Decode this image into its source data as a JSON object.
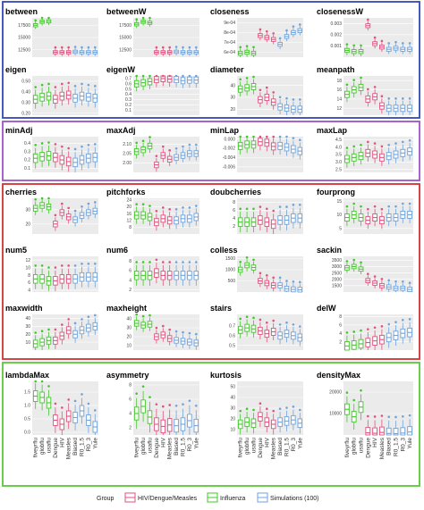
{
  "chart_data": {
    "type": "box",
    "categories": [
      "fiveyrflu",
      "globflu",
      "usaflu",
      "Dengue",
      "HIV",
      "Measles",
      "Biased",
      "R0_1.5",
      "R0_3",
      "Yule"
    ],
    "category_groups": [
      "Influenza",
      "Influenza",
      "Influenza",
      "HIV/Dengue/Measles",
      "HIV/Dengue/Measles",
      "HIV/Dengue/Measles",
      "Simulations (100)",
      "Simulations (100)",
      "Simulations (100)",
      "Simulations (100)"
    ],
    "legend": {
      "title": "Group",
      "entries": [
        "HIV/Dengue/Measles",
        "Influenza",
        "Simulations (100)"
      ],
      "position": "bottom"
    },
    "colors": {
      "HIV/Dengue/Measles": "#e0527f",
      "Influenza": "#40c828",
      "Simulations (100)": "#6fa3dc",
      "panel_bg": "#ebebeb",
      "grid": "#ffffff"
    },
    "groups": [
      {
        "frame_color": "#3346b8",
        "panels": [
          {
            "name": "between",
            "ylim": [
              11000,
              19000
            ],
            "yticks": [
              "12500",
              "15000",
              "17500"
            ],
            "medians": [
              17500,
              18200,
              18300,
              12000,
              12000,
              12000,
              12100,
              12000,
              12000,
              12000
            ],
            "spread": 0.04
          },
          {
            "name": "betweenW",
            "ylim": [
              11000,
              19000
            ],
            "yticks": [
              "12500",
              "15000",
              "17500"
            ],
            "medians": [
              17700,
              18200,
              18000,
              12000,
              12000,
              12000,
              12100,
              12000,
              12000,
              12000
            ],
            "spread": 0.04
          },
          {
            "name": "closeness",
            "ylim": [
              0.00055,
              0.00095
            ],
            "yticks": [
              "6e-04",
              "7e-04",
              "8e-04",
              "9e-04"
            ],
            "medians": [
              0.00059,
              0.0006,
              0.00059,
              0.00077,
              0.00075,
              0.00073,
              0.00068,
              0.00076,
              0.0008,
              0.00082
            ],
            "spread": 0.05
          },
          {
            "name": "closenessW",
            "ylim": [
              0,
              0.0035
            ],
            "yticks": [
              "0.001",
              "0.002",
              "0.003"
            ],
            "medians": [
              0.0006,
              0.0005,
              0.0005,
              0.0028,
              0.0012,
              0.0009,
              0.0007,
              0.0008,
              0.0007,
              0.0007
            ],
            "spread": 0.05
          },
          {
            "name": "eigen",
            "ylim": [
              0.18,
              0.55
            ],
            "yticks": [
              "0.20",
              "0.30",
              "0.40",
              "0.50"
            ],
            "medians": [
              0.33,
              0.35,
              0.36,
              0.33,
              0.36,
              0.37,
              0.34,
              0.36,
              0.35,
              0.34
            ],
            "spread": 0.1
          },
          {
            "name": "eigenW",
            "ylim": [
              0,
              0.75
            ],
            "yticks": [
              "0.1",
              "0.2",
              "0.3",
              "0.4",
              "0.5",
              "0.6",
              "0.7"
            ],
            "medians": [
              0.6,
              0.62,
              0.64,
              0.68,
              0.7,
              0.69,
              0.68,
              0.66,
              0.67,
              0.67
            ],
            "spread": 0.08
          },
          {
            "name": "diameter",
            "ylim": [
              15,
              48
            ],
            "yticks": [
              "20",
              "30",
              "40"
            ],
            "medians": [
              37,
              38,
              39,
              28,
              30,
              26,
              22,
              21,
              20,
              20
            ],
            "spread": 0.08
          },
          {
            "name": "meanpath",
            "ylim": [
              10.5,
              19
            ],
            "yticks": [
              "12",
              "14",
              "16",
              "18"
            ],
            "medians": [
              15,
              16,
              16.5,
              14,
              14.5,
              12.5,
              12,
              12,
              12,
              12
            ],
            "spread": 0.08
          }
        ]
      },
      {
        "frame_color": "#a050c8",
        "panels": [
          {
            "name": "minAdj",
            "ylim": [
              0.05,
              0.48
            ],
            "yticks": [
              "0.1",
              "0.2",
              "0.3",
              "0.4"
            ],
            "medians": [
              0.22,
              0.24,
              0.25,
              0.23,
              0.2,
              0.18,
              0.17,
              0.2,
              0.22,
              0.23
            ],
            "spread": 0.12
          },
          {
            "name": "maxAdj",
            "ylim": [
              1.95,
              2.14
            ],
            "yticks": [
              "2.00",
              "2.05",
              "2.10"
            ],
            "medians": [
              2.06,
              2.07,
              2.09,
              1.99,
              2.04,
              2.02,
              2.03,
              2.04,
              2.05,
              2.05
            ],
            "spread": 0.08
          },
          {
            "name": "minLap",
            "ylim": [
              -0.0072,
              0.0005
            ],
            "yticks": [
              "-0.006",
              "-0.004",
              "-0.002",
              "0.000"
            ],
            "medians": [
              -0.0015,
              -0.0012,
              -0.0012,
              -0.0006,
              -0.0008,
              -0.0016,
              -0.0015,
              -0.0018,
              -0.0022,
              -0.0026
            ],
            "spread": 0.1
          },
          {
            "name": "maxLap",
            "ylim": [
              2.3,
              4.7
            ],
            "yticks": [
              "2.5",
              "3.0",
              "3.5",
              "4.0",
              "4.5"
            ],
            "medians": [
              3.2,
              3.3,
              3.4,
              3.6,
              3.5,
              3.3,
              3.4,
              3.5,
              3.6,
              3.7
            ],
            "spread": 0.1
          }
        ]
      },
      {
        "frame_color": "#d43030",
        "panels": [
          {
            "name": "cherries",
            "ylim": [
              13,
              38
            ],
            "yticks": [
              "20",
              "30"
            ],
            "medians": [
              31,
              33,
              32,
              20,
              28,
              25,
              23,
              26,
              28,
              29
            ],
            "spread": 0.08
          },
          {
            "name": "pitchforks",
            "ylim": [
              4,
              25
            ],
            "yticks": [
              "8",
              "12",
              "16",
              "20",
              "24"
            ],
            "medians": [
              15,
              15,
              14,
              11,
              13,
              12,
              12,
              13,
              13,
              14
            ],
            "spread": 0.1
          },
          {
            "name": "doubcherries",
            "ylim": [
              0,
              9
            ],
            "yticks": [
              "2",
              "4",
              "6",
              "8"
            ],
            "medians": [
              3,
              3,
              3,
              3.5,
              3,
              2.5,
              3.5,
              3.5,
              4,
              4
            ],
            "spread": 0.12
          },
          {
            "name": "fourprong",
            "ylim": [
              3,
              16
            ],
            "yticks": [
              "5",
              "10",
              "15"
            ],
            "medians": [
              9,
              10,
              9,
              8,
              9,
              8,
              9,
              9,
              10,
              10
            ],
            "spread": 0.1
          },
          {
            "name": "num5",
            "ylim": [
              3.5,
              13
            ],
            "yticks": [
              "4",
              "6",
              "8",
              "10",
              "12"
            ],
            "medians": [
              7,
              7,
              6.5,
              6.5,
              7,
              7,
              7,
              7.5,
              7.5,
              7.5
            ],
            "spread": 0.12
          },
          {
            "name": "num6",
            "ylim": [
              1.5,
              9
            ],
            "yticks": [
              "2",
              "4",
              "6",
              "8"
            ],
            "medians": [
              5,
              5,
              5,
              5.5,
              5,
              5,
              5,
              5,
              5,
              5
            ],
            "spread": 0.12
          },
          {
            "name": "colless",
            "ylim": [
              0,
              1600
            ],
            "yticks": [
              "500",
              "1000",
              "1500"
            ],
            "medians": [
              1000,
              1200,
              1100,
              500,
              400,
              300,
              300,
              150,
              120,
              100
            ],
            "spread": 0.07
          },
          {
            "name": "sackin",
            "ylim": [
              1000,
              3800
            ],
            "yticks": [
              "1500",
              "2000",
              "2500",
              "3000",
              "3500"
            ],
            "medians": [
              2900,
              3000,
              2800,
              1900,
              1700,
              1500,
              1400,
              1300,
              1300,
              1200
            ],
            "spread": 0.06
          },
          {
            "name": "maxwidth",
            "ylim": [
              0,
              45
            ],
            "yticks": [
              "10",
              "20",
              "30",
              "40"
            ],
            "medians": [
              8,
              10,
              12,
              12,
              18,
              25,
              20,
              25,
              28,
              30
            ],
            "spread": 0.1
          },
          {
            "name": "maxheight",
            "ylim": [
              5,
              45
            ],
            "yticks": [
              "10",
              "20",
              "30",
              "40"
            ],
            "medians": [
              35,
              33,
              34,
              20,
              22,
              18,
              16,
              15,
              14,
              13
            ],
            "spread": 0.08
          },
          {
            "name": "stairs",
            "ylim": [
              0.45,
              0.82
            ],
            "yticks": [
              "0.5",
              "0.6",
              "0.7"
            ],
            "medians": [
              0.66,
              0.68,
              0.67,
              0.65,
              0.62,
              0.64,
              0.6,
              0.62,
              0.6,
              0.58
            ],
            "spread": 0.1
          },
          {
            "name": "delW",
            "ylim": [
              0,
              8.5
            ],
            "yticks": [
              "2",
              "4",
              "6",
              "8"
            ],
            "medians": [
              1,
              1.2,
              1.5,
              1.8,
              2.2,
              2.5,
              3,
              3.5,
              4,
              4.2
            ],
            "spread": 0.12
          }
        ]
      },
      {
        "frame_color": "#58c838",
        "panels": [
          {
            "name": "lambdaMax",
            "ylim": [
              -0.1,
              1.9
            ],
            "yticks": [
              "0.0",
              "0.5",
              "1.0",
              "1.5"
            ],
            "medians": [
              1.35,
              1.3,
              1.1,
              0.45,
              0.3,
              0.6,
              0.55,
              0.8,
              0.45,
              0.2
            ],
            "spread": 0.1
          },
          {
            "name": "asymmetry",
            "ylim": [
              1,
              8.5
            ],
            "yticks": [
              "2",
              "4",
              "6",
              "8"
            ],
            "medians": [
              4,
              5,
              3.5,
              2.5,
              2.2,
              2.4,
              2.3,
              2.5,
              3,
              2.3
            ],
            "spread": 0.12
          },
          {
            "name": "kurtosis",
            "ylim": [
              5,
              55
            ],
            "yticks": [
              "10",
              "20",
              "30",
              "40",
              "50"
            ],
            "medians": [
              15,
              17,
              16,
              22,
              17,
              15,
              17,
              18,
              19,
              16
            ],
            "spread": 0.08
          },
          {
            "name": "densityMax",
            "ylim": [
              0,
              25000
            ],
            "yticks": [
              "10000",
              "20000"
            ],
            "medians": [
              12000,
              8500,
              13000,
              1000,
              800,
              1200,
              700,
              600,
              900,
              1400
            ],
            "spread": 0.1
          }
        ]
      }
    ]
  }
}
